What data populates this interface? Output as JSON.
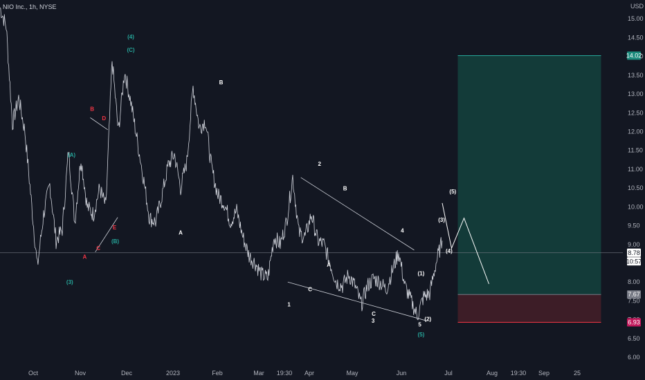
{
  "header": {
    "symbol_text": "NIO Inc., 1h, NYSE"
  },
  "colors": {
    "background": "#131722",
    "price_line": "#d1d4dc",
    "wave_green": "#26a69a",
    "wave_red": "#f23645",
    "wave_white": "#ffffff",
    "profit_zone": "#133b39",
    "loss_zone": "#3d1d27",
    "target_badge": "#1b8a7c",
    "stop_badge": "#c2185b",
    "last_price_badge": "#ffffff",
    "entry_badge": "#787b86"
  },
  "chart_data": {
    "type": "line",
    "title": "NIO Inc., 1h, NYSE",
    "currency_label": "USD",
    "ylim": [
      5.8,
      15.5
    ],
    "y_ticks": [
      "15.00",
      "14.50",
      "14.00",
      "13.50",
      "13.00",
      "12.50",
      "12.00",
      "11.50",
      "11.00",
      "10.50",
      "10.00",
      "9.50",
      "9.00",
      "8.50",
      "8.00",
      "7.50",
      "7.00",
      "6.50",
      "6.00"
    ],
    "x_tick_labels": [
      "Oct",
      "Nov",
      "Dec",
      "2023",
      "Feb",
      "Mar",
      "19:30",
      "Apr",
      "May",
      "Jun",
      "Jul",
      "Aug",
      "19:30",
      "Sep",
      "25"
    ],
    "price_badges": [
      {
        "label": "14.02",
        "value": 14.02,
        "kind": "target"
      },
      {
        "label": "8.78",
        "value": 8.78,
        "kind": "last"
      },
      {
        "label": "10:57",
        "value": 8.55,
        "kind": "countdown"
      },
      {
        "label": "7.67",
        "value": 7.67,
        "kind": "entry"
      },
      {
        "label": "6.93",
        "value": 6.93,
        "kind": "stop"
      }
    ],
    "price_path": [
      [
        0.0,
        15.3
      ],
      [
        0.01,
        14.8
      ],
      [
        0.02,
        12.2
      ],
      [
        0.03,
        12.9
      ],
      [
        0.04,
        12.0
      ],
      [
        0.05,
        10.2
      ],
      [
        0.06,
        8.4
      ],
      [
        0.07,
        9.8
      ],
      [
        0.08,
        10.6
      ],
      [
        0.09,
        9.1
      ],
      [
        0.1,
        9.4
      ],
      [
        0.11,
        11.5
      ],
      [
        0.12,
        9.6
      ],
      [
        0.13,
        11.3
      ],
      [
        0.14,
        10.0
      ],
      [
        0.15,
        9.8
      ],
      [
        0.16,
        10.5
      ],
      [
        0.17,
        10.0
      ],
      [
        0.18,
        13.9
      ],
      [
        0.19,
        12.0
      ],
      [
        0.2,
        13.6
      ],
      [
        0.21,
        12.8
      ],
      [
        0.22,
        11.8
      ],
      [
        0.23,
        10.8
      ],
      [
        0.24,
        9.7
      ],
      [
        0.25,
        9.6
      ],
      [
        0.26,
        10.3
      ],
      [
        0.27,
        11.1
      ],
      [
        0.28,
        11.4
      ],
      [
        0.29,
        10.5
      ],
      [
        0.3,
        11.2
      ],
      [
        0.31,
        13.2
      ],
      [
        0.32,
        12.1
      ],
      [
        0.33,
        12.3
      ],
      [
        0.34,
        11.0
      ],
      [
        0.35,
        10.3
      ],
      [
        0.36,
        10.1
      ],
      [
        0.37,
        9.6
      ],
      [
        0.38,
        9.9
      ],
      [
        0.39,
        9.2
      ],
      [
        0.4,
        8.7
      ],
      [
        0.41,
        8.5
      ],
      [
        0.42,
        8.2
      ],
      [
        0.43,
        8.1
      ],
      [
        0.44,
        9.2
      ],
      [
        0.45,
        9.0
      ],
      [
        0.46,
        9.6
      ],
      [
        0.47,
        10.8
      ],
      [
        0.48,
        9.3
      ],
      [
        0.49,
        9.2
      ],
      [
        0.5,
        9.8
      ],
      [
        0.51,
        9.1
      ],
      [
        0.52,
        9.0
      ],
      [
        0.53,
        8.5
      ],
      [
        0.54,
        8.0
      ],
      [
        0.55,
        7.9
      ],
      [
        0.56,
        8.2
      ],
      [
        0.57,
        7.9
      ],
      [
        0.58,
        7.4
      ],
      [
        0.59,
        7.9
      ],
      [
        0.6,
        8.1
      ],
      [
        0.61,
        8.0
      ],
      [
        0.62,
        7.8
      ],
      [
        0.63,
        8.3
      ],
      [
        0.64,
        8.8
      ],
      [
        0.65,
        7.9
      ],
      [
        0.66,
        7.5
      ],
      [
        0.67,
        7.1
      ],
      [
        0.68,
        7.6
      ],
      [
        0.69,
        7.7
      ],
      [
        0.7,
        8.5
      ],
      [
        0.71,
        9.1
      ]
    ],
    "projection_path": [
      [
        0.71,
        10.1
      ],
      [
        0.725,
        8.9
      ],
      [
        0.745,
        9.7
      ],
      [
        0.785,
        7.95
      ]
    ],
    "trendlines": [
      {
        "from": [
          0.483,
          10.78
        ],
        "to": [
          0.665,
          8.85
        ]
      },
      {
        "from": [
          0.462,
          8.0
        ],
        "to": [
          0.685,
          6.97
        ]
      },
      {
        "from": [
          0.145,
          12.37
        ],
        "to": [
          0.173,
          12.05
        ]
      },
      {
        "from": [
          0.153,
          8.8
        ],
        "to": [
          0.189,
          9.72
        ]
      }
    ],
    "horizontal_line": 8.78,
    "trade_zones": {
      "x_range": [
        0.735,
        0.965
      ],
      "target": 14.02,
      "entry": 7.67,
      "stop": 6.93
    },
    "wave_labels": [
      {
        "text": "(4)",
        "x": 0.21,
        "y": 14.47,
        "color": "green"
      },
      {
        "text": "(C)",
        "x": 0.21,
        "y": 14.12,
        "color": "green"
      },
      {
        "text": "(A)",
        "x": 0.115,
        "y": 11.33,
        "color": "green"
      },
      {
        "text": "(B)",
        "x": 0.185,
        "y": 9.03,
        "color": "green"
      },
      {
        "text": "(3)",
        "x": 0.112,
        "y": 7.95,
        "color": "green"
      },
      {
        "text": "(5)",
        "x": 0.676,
        "y": 6.55,
        "color": "green"
      },
      {
        "text": "B",
        "x": 0.148,
        "y": 12.55,
        "color": "red"
      },
      {
        "text": "D",
        "x": 0.167,
        "y": 12.3,
        "color": "red"
      },
      {
        "text": "E",
        "x": 0.184,
        "y": 9.4,
        "color": "red"
      },
      {
        "text": "C",
        "x": 0.158,
        "y": 8.85,
        "color": "red"
      },
      {
        "text": "A",
        "x": 0.136,
        "y": 8.62,
        "color": "red"
      },
      {
        "text": "A",
        "x": 0.29,
        "y": 9.26,
        "color": "white"
      },
      {
        "text": "B",
        "x": 0.355,
        "y": 13.26,
        "color": "white"
      },
      {
        "text": "C",
        "x": 0.498,
        "y": 7.76,
        "color": "white"
      },
      {
        "text": "1",
        "x": 0.464,
        "y": 7.35,
        "color": "white"
      },
      {
        "text": "2",
        "x": 0.513,
        "y": 11.09,
        "color": "white"
      },
      {
        "text": "B",
        "x": 0.554,
        "y": 10.44,
        "color": "white"
      },
      {
        "text": "A",
        "x": 0.528,
        "y": 8.41,
        "color": "white"
      },
      {
        "text": "4",
        "x": 0.646,
        "y": 9.32,
        "color": "white"
      },
      {
        "text": "C",
        "x": 0.6,
        "y": 7.1,
        "color": "white"
      },
      {
        "text": "3",
        "x": 0.599,
        "y": 6.92,
        "color": "white"
      },
      {
        "text": "5",
        "x": 0.674,
        "y": 6.82,
        "color": "white"
      },
      {
        "text": "(1)",
        "x": 0.676,
        "y": 8.18,
        "color": "white"
      },
      {
        "text": "(2)",
        "x": 0.687,
        "y": 6.97,
        "color": "white"
      },
      {
        "text": "(3)",
        "x": 0.709,
        "y": 9.6,
        "color": "white"
      },
      {
        "text": "(4)",
        "x": 0.721,
        "y": 8.78,
        "color": "white"
      },
      {
        "text": "(5)",
        "x": 0.727,
        "y": 10.36,
        "color": "white"
      }
    ]
  }
}
